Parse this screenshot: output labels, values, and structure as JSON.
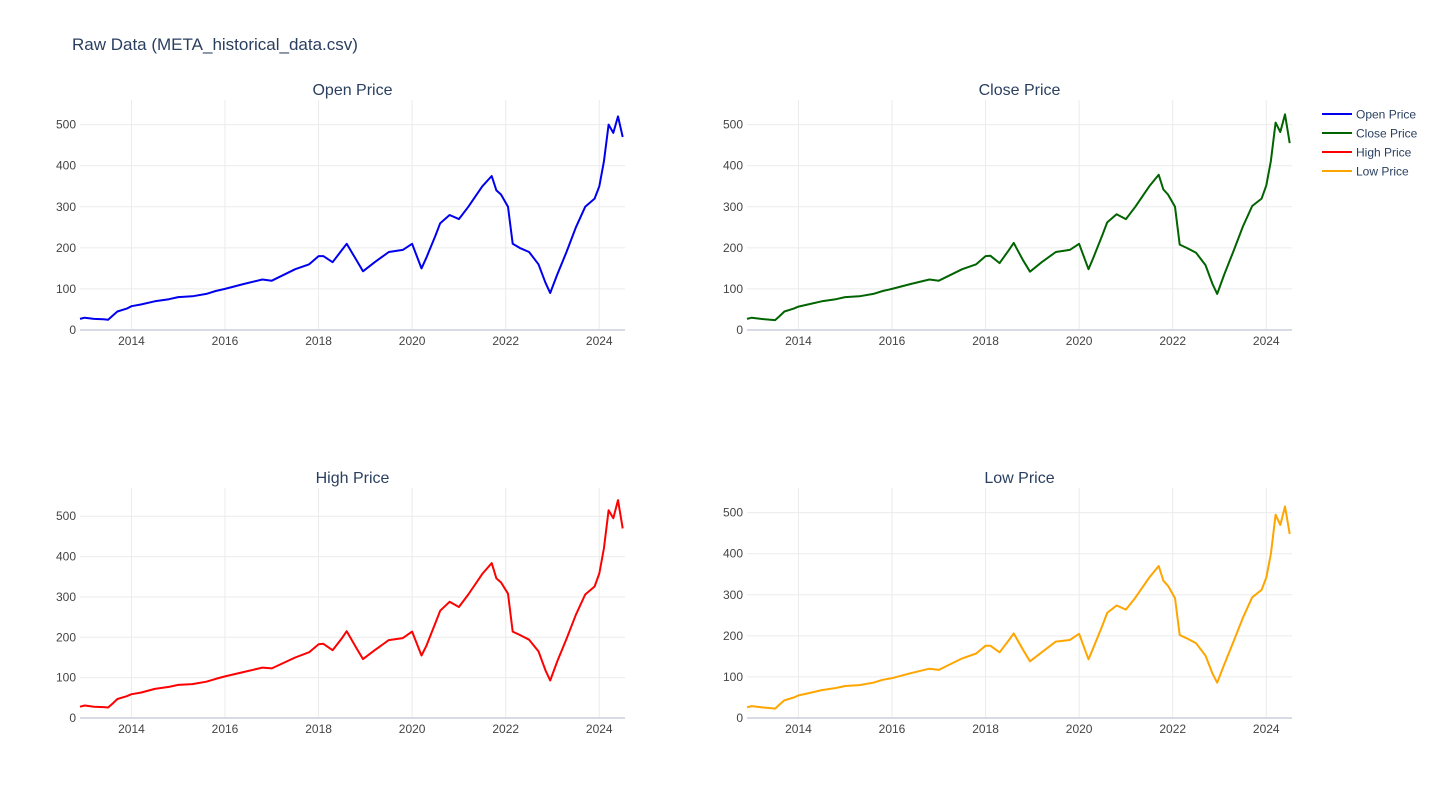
{
  "figure": {
    "title": "Raw Data (META_historical_data.csv)"
  },
  "chart_data": [
    {
      "type": "line",
      "title": "Open Price",
      "color": "#0000ee",
      "xlim": [
        2012.9,
        2024.55
      ],
      "ylim": [
        0,
        560
      ],
      "xticks": [
        "2014",
        "2016",
        "2018",
        "2020",
        "2022",
        "2024"
      ],
      "yticks": [
        "0",
        "100",
        "200",
        "300",
        "400",
        "500"
      ],
      "grid": true,
      "series": [
        {
          "name": "Open Price",
          "x": [
            2012.9,
            2013.0,
            2013.2,
            2013.4,
            2013.5,
            2013.6,
            2013.7,
            2013.9,
            2014.0,
            2014.2,
            2014.5,
            2014.8,
            2015.0,
            2015.3,
            2015.6,
            2015.8,
            2016.0,
            2016.4,
            2016.8,
            2017.0,
            2017.5,
            2017.8,
            2018.0,
            2018.1,
            2018.3,
            2018.5,
            2018.6,
            2018.8,
            2018.95,
            2019.2,
            2019.5,
            2019.8,
            2020.0,
            2020.2,
            2020.3,
            2020.5,
            2020.6,
            2020.8,
            2021.0,
            2021.2,
            2021.5,
            2021.7,
            2021.8,
            2021.9,
            2022.05,
            2022.15,
            2022.3,
            2022.5,
            2022.7,
            2022.85,
            2022.95,
            2023.1,
            2023.3,
            2023.5,
            2023.7,
            2023.9,
            2024.0,
            2024.1,
            2024.2,
            2024.3,
            2024.4,
            2024.5
          ],
          "y": [
            27,
            30,
            27,
            26,
            25,
            35,
            45,
            52,
            58,
            62,
            70,
            75,
            80,
            82,
            88,
            95,
            100,
            112,
            123,
            120,
            148,
            160,
            180,
            180,
            165,
            195,
            210,
            172,
            143,
            165,
            190,
            195,
            210,
            150,
            175,
            230,
            260,
            280,
            270,
            300,
            350,
            375,
            340,
            330,
            300,
            210,
            200,
            190,
            160,
            115,
            90,
            135,
            190,
            250,
            300,
            320,
            350,
            410,
            500,
            480,
            520,
            470
          ]
        }
      ]
    },
    {
      "type": "line",
      "title": "Close Price",
      "color": "#006400",
      "xlim": [
        2012.9,
        2024.55
      ],
      "ylim": [
        0,
        560
      ],
      "xticks": [
        "2014",
        "2016",
        "2018",
        "2020",
        "2022",
        "2024"
      ],
      "yticks": [
        "0",
        "100",
        "200",
        "300",
        "400",
        "500"
      ],
      "grid": true,
      "series": [
        {
          "name": "Close Price",
          "x": [
            2012.9,
            2013.0,
            2013.2,
            2013.4,
            2013.5,
            2013.6,
            2013.7,
            2013.9,
            2014.0,
            2014.2,
            2014.5,
            2014.8,
            2015.0,
            2015.3,
            2015.6,
            2015.8,
            2016.0,
            2016.4,
            2016.8,
            2017.0,
            2017.5,
            2017.8,
            2018.0,
            2018.1,
            2018.3,
            2018.5,
            2018.6,
            2018.8,
            2018.95,
            2019.2,
            2019.5,
            2019.8,
            2020.0,
            2020.2,
            2020.3,
            2020.5,
            2020.6,
            2020.8,
            2021.0,
            2021.2,
            2021.5,
            2021.7,
            2021.8,
            2021.9,
            2022.05,
            2022.15,
            2022.3,
            2022.5,
            2022.7,
            2022.85,
            2022.95,
            2023.1,
            2023.3,
            2023.5,
            2023.7,
            2023.9,
            2024.0,
            2024.1,
            2024.2,
            2024.3,
            2024.4,
            2024.5
          ],
          "y": [
            27,
            30,
            27,
            25,
            24,
            34,
            45,
            52,
            57,
            62,
            70,
            75,
            80,
            82,
            88,
            95,
            100,
            112,
            123,
            120,
            148,
            160,
            180,
            181,
            163,
            195,
            212,
            170,
            142,
            165,
            190,
            195,
            210,
            148,
            175,
            232,
            262,
            282,
            270,
            300,
            350,
            378,
            342,
            330,
            300,
            208,
            200,
            188,
            158,
            112,
            88,
            135,
            192,
            252,
            302,
            320,
            352,
            412,
            505,
            482,
            525,
            455
          ]
        }
      ]
    },
    {
      "type": "line",
      "title": "High Price",
      "color": "#ff0000",
      "xlim": [
        2012.9,
        2024.55
      ],
      "ylim": [
        0,
        570
      ],
      "xticks": [
        "2014",
        "2016",
        "2018",
        "2020",
        "2022",
        "2024"
      ],
      "yticks": [
        "0",
        "100",
        "200",
        "300",
        "400",
        "500"
      ],
      "grid": true,
      "series": [
        {
          "name": "High Price",
          "x": [
            2012.9,
            2013.0,
            2013.2,
            2013.4,
            2013.5,
            2013.6,
            2013.7,
            2013.9,
            2014.0,
            2014.2,
            2014.5,
            2014.8,
            2015.0,
            2015.3,
            2015.6,
            2015.8,
            2016.0,
            2016.4,
            2016.8,
            2017.0,
            2017.5,
            2017.8,
            2018.0,
            2018.1,
            2018.3,
            2018.5,
            2018.6,
            2018.8,
            2018.95,
            2019.2,
            2019.5,
            2019.8,
            2020.0,
            2020.2,
            2020.3,
            2020.5,
            2020.6,
            2020.8,
            2021.0,
            2021.2,
            2021.5,
            2021.7,
            2021.8,
            2021.9,
            2022.05,
            2022.15,
            2022.3,
            2022.5,
            2022.7,
            2022.85,
            2022.95,
            2023.1,
            2023.3,
            2023.5,
            2023.7,
            2023.9,
            2024.0,
            2024.1,
            2024.2,
            2024.3,
            2024.4,
            2024.5
          ],
          "y": [
            28,
            31,
            28,
            27,
            26,
            36,
            47,
            54,
            59,
            63,
            72,
            77,
            82,
            84,
            90,
            97,
            103,
            114,
            125,
            123,
            150,
            163,
            183,
            184,
            168,
            198,
            215,
            175,
            146,
            168,
            193,
            198,
            214,
            155,
            178,
            236,
            266,
            288,
            275,
            306,
            357,
            384,
            346,
            336,
            308,
            214,
            206,
            194,
            165,
            118,
            93,
            140,
            196,
            256,
            306,
            326,
            358,
            420,
            515,
            495,
            540,
            470
          ]
        }
      ]
    },
    {
      "type": "line",
      "title": "Low Price",
      "color": "#ffa500",
      "xlim": [
        2012.9,
        2024.55
      ],
      "ylim": [
        0,
        560
      ],
      "xticks": [
        "2014",
        "2016",
        "2018",
        "2020",
        "2022",
        "2024"
      ],
      "yticks": [
        "0",
        "100",
        "200",
        "300",
        "400",
        "500"
      ],
      "grid": true,
      "series": [
        {
          "name": "Low Price",
          "x": [
            2012.9,
            2013.0,
            2013.2,
            2013.4,
            2013.5,
            2013.6,
            2013.7,
            2013.9,
            2014.0,
            2014.2,
            2014.5,
            2014.8,
            2015.0,
            2015.3,
            2015.6,
            2015.8,
            2016.0,
            2016.4,
            2016.8,
            2017.0,
            2017.5,
            2017.8,
            2018.0,
            2018.1,
            2018.3,
            2018.5,
            2018.6,
            2018.8,
            2018.95,
            2019.2,
            2019.5,
            2019.8,
            2020.0,
            2020.2,
            2020.3,
            2020.5,
            2020.6,
            2020.8,
            2021.0,
            2021.2,
            2021.5,
            2021.7,
            2021.8,
            2021.9,
            2022.05,
            2022.15,
            2022.3,
            2022.5,
            2022.7,
            2022.85,
            2022.95,
            2023.1,
            2023.3,
            2023.5,
            2023.7,
            2023.9,
            2024.0,
            2024.1,
            2024.2,
            2024.3,
            2024.4,
            2024.5
          ],
          "y": [
            26,
            29,
            26,
            24,
            23,
            33,
            43,
            50,
            55,
            60,
            68,
            73,
            78,
            80,
            86,
            93,
            97,
            109,
            120,
            117,
            145,
            157,
            176,
            176,
            160,
            190,
            206,
            166,
            138,
            160,
            186,
            190,
            205,
            143,
            170,
            226,
            256,
            274,
            264,
            293,
            342,
            370,
            334,
            322,
            292,
            202,
            194,
            182,
            152,
            108,
            86,
            130,
            186,
            244,
            294,
            312,
            342,
            400,
            495,
            470,
            515,
            448
          ]
        }
      ]
    }
  ],
  "legend": {
    "placement": "top-right",
    "items": [
      {
        "name": "Open Price",
        "color": "#0000ee"
      },
      {
        "name": "Close Price",
        "color": "#006400"
      },
      {
        "name": "High Price",
        "color": "#ff0000"
      },
      {
        "name": "Low Price",
        "color": "#ffa500"
      }
    ]
  }
}
